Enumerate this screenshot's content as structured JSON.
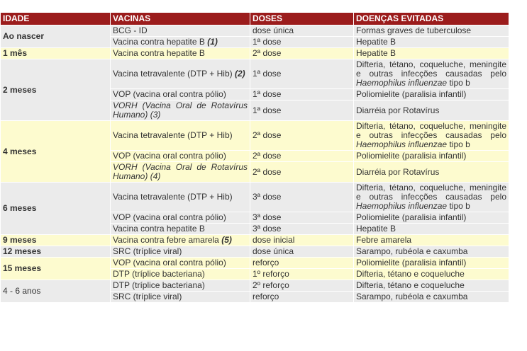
{
  "table": {
    "colors": {
      "header": "#9b1c1c",
      "header_text": "#ffffff",
      "border": "#ffffff"
    },
    "header": [
      "IDADE",
      "VACINAS",
      "DOSES",
      "DOENÇAS EVITADAS"
    ],
    "groups": [
      {
        "age": "Ao nascer",
        "age_bold": true,
        "background": "#ebebeb",
        "rows": [
          {
            "vaccine": "BCG - ID",
            "dose": "dose única",
            "disease": "Formas graves de tuberculose"
          },
          {
            "vaccine": "Vacina contra hepatite B",
            "note": "(1)",
            "dose": "1ª dose",
            "disease": "Hepatite B"
          }
        ]
      },
      {
        "age": "1 mês",
        "age_bold": true,
        "background": "#fdfbcf",
        "rows": [
          {
            "vaccine": "Vacina contra hepatite B",
            "dose": "2ª dose",
            "disease": "Hepatite B"
          }
        ]
      },
      {
        "age": "2 meses",
        "age_bold": true,
        "background": "#ebebeb",
        "rows": [
          {
            "vaccine": "Vacina tetravalente (DTP + Hib)",
            "note": "(2)",
            "dose": "1ª dose",
            "disease": "Difteria, tétano, coqueluche, meningite e outras infecções causadas pelo",
            "disease_italic": "Haemophilus influenzae",
            "disease_end": "tipo b"
          },
          {
            "vaccine": "VOP (vacina oral contra pólio)",
            "dose": "1ª dose",
            "disease": "Poliomielite (paralisia infantil)"
          },
          {
            "vaccine": "VORH (Vacina Oral de Rotavírus Humano)",
            "note": "(3)",
            "italic": true,
            "dose": "1ª dose",
            "disease": "Diarréia por Rotavírus"
          }
        ]
      },
      {
        "age": "4 meses",
        "age_bold": true,
        "background": "#fdfbcf",
        "rows": [
          {
            "vaccine": "Vacina tetravalente (DTP + Hib)",
            "dose": "2ª dose",
            "disease": "Difteria, tétano, coqueluche, meningite e outras infecções causadas pelo",
            "disease_italic": "Haemophilus influenzae",
            "disease_end": "tipo b"
          },
          {
            "vaccine": "VOP (vacina oral contra pólio)",
            "dose": "2ª dose",
            "disease": "Poliomielite (paralisia infantil)"
          },
          {
            "vaccine": "VORH (Vacina Oral de Rotavírus Humano)",
            "note": "(4)",
            "italic": true,
            "dose": "2ª dose",
            "disease": "Diarréia por Rotavírus"
          }
        ]
      },
      {
        "age": "6 meses",
        "age_bold": true,
        "background": "#ebebeb",
        "rows": [
          {
            "vaccine": "Vacina tetravalente (DTP + Hib)",
            "dose": "3ª dose",
            "disease": "Difteria, tétano, coqueluche, meningite e outras infecções causadas pelo",
            "disease_italic": "Haemophilus influenzae",
            "disease_end": "tipo b"
          },
          {
            "vaccine": "VOP (vacina oral contra pólio)",
            "dose": "3ª dose",
            "disease": "Poliomielite (paralisia infantil)"
          },
          {
            "vaccine": "Vacina contra hepatite B",
            "dose": "3ª dose",
            "disease": "Hepatite B"
          }
        ]
      },
      {
        "age": "9 meses",
        "age_bold": true,
        "background": "#fdfbcf",
        "rows": [
          {
            "vaccine": "Vacina contra febre amarela",
            "note": "(5)",
            "dose": "dose inicial",
            "disease": "Febre amarela"
          }
        ]
      },
      {
        "age": "12 meses",
        "age_bold": true,
        "background": "#ebebeb",
        "rows": [
          {
            "vaccine": "SRC (tríplice viral)",
            "dose": "dose única",
            "disease": "Sarampo, rubéola e caxumba"
          }
        ]
      },
      {
        "age": "15 meses",
        "age_bold": true,
        "background": "#fdfbcf",
        "rows": [
          {
            "vaccine": "VOP (vacina oral contra pólio)",
            "dose": "reforço",
            "disease": "Poliomielite (paralisia infantil)"
          },
          {
            "vaccine": "DTP (tríplice bacteriana)",
            "dose": "1º reforço",
            "disease": "Difteria, tétano e coqueluche"
          }
        ]
      },
      {
        "age": "4 - 6 anos",
        "age_bold": false,
        "background": "#ebebeb",
        "rows": [
          {
            "vaccine": "DTP (tríplice bacteriana)",
            "dose": "2º reforço",
            "disease": "Difteria, tétano e coqueluche"
          },
          {
            "vaccine": "SRC (tríplice viral)",
            "dose": "reforço",
            "disease": "Sarampo, rubéola e caxumba"
          }
        ]
      }
    ]
  }
}
